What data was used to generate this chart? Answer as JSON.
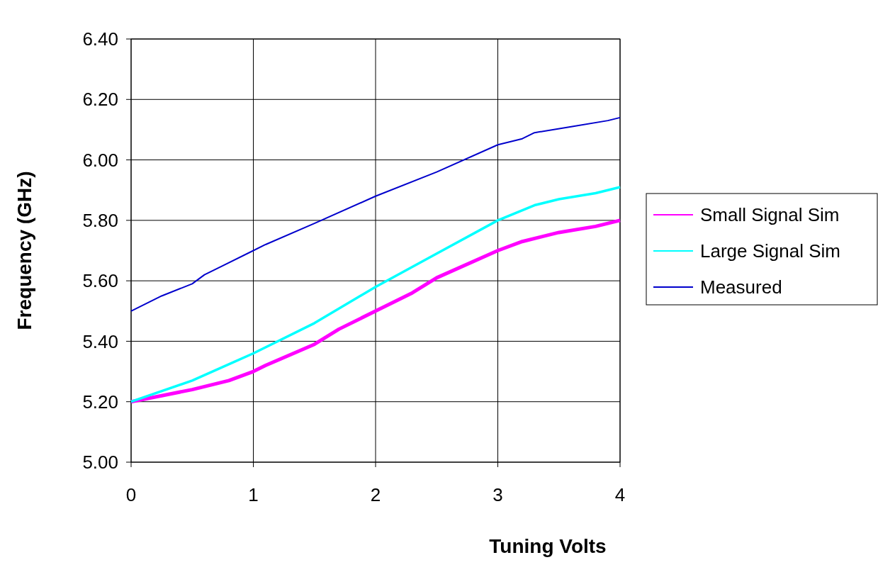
{
  "chart_data": {
    "type": "line",
    "xlabel": "Tuning Volts",
    "ylabel": "Frequency (GHz)",
    "xlim": [
      0,
      4
    ],
    "xticks": [
      0,
      1,
      2,
      3,
      4
    ],
    "ylim": [
      5,
      6.4
    ],
    "yticks": [
      {
        "value": 5,
        "label": "5.00"
      },
      {
        "value": 5.2,
        "label": "5.20"
      },
      {
        "value": 5.4,
        "label": "5.40"
      },
      {
        "value": 5.6,
        "label": "5.60"
      },
      {
        "value": 5.8,
        "label": "5.80"
      },
      {
        "value": 6,
        "label": "6.00"
      },
      {
        "value": 6.2,
        "label": "6.20"
      },
      {
        "value": 6.4,
        "label": "6.40"
      }
    ],
    "grid": true,
    "legend": "right",
    "marker": "none",
    "line_style": "solid",
    "series": [
      {
        "name": "Small Signal Sim",
        "color": "#ff00ff",
        "x": [
          0,
          0.25,
          0.5,
          0.8,
          1,
          1.1,
          1.5,
          1.7,
          2,
          2.3,
          2.5,
          3,
          3.2,
          3.5,
          3.8,
          4
        ],
        "values": [
          5.2,
          5.22,
          5.24,
          5.27,
          5.3,
          5.32,
          5.39,
          5.44,
          5.5,
          5.56,
          5.61,
          5.7,
          5.73,
          5.76,
          5.78,
          5.8
        ]
      },
      {
        "name": "Large Signal Sim",
        "color": "#00ffff",
        "x": [
          0,
          0.5,
          1,
          1.5,
          2,
          2.5,
          3,
          3.3,
          3.5,
          3.8,
          4
        ],
        "values": [
          5.2,
          5.27,
          5.36,
          5.46,
          5.58,
          5.69,
          5.8,
          5.85,
          5.87,
          5.89,
          5.91
        ]
      },
      {
        "name": "Measured",
        "color": "#0000cc",
        "x": [
          0,
          0.25,
          0.5,
          0.6,
          0.75,
          1,
          1.1,
          1.5,
          2,
          2.5,
          3,
          3.2,
          3.3,
          3.6,
          3.9,
          4
        ],
        "values": [
          5.5,
          5.55,
          5.59,
          5.62,
          5.65,
          5.7,
          5.72,
          5.79,
          5.88,
          5.96,
          6.05,
          6.07,
          6.09,
          6.11,
          6.13,
          6.14
        ]
      }
    ]
  }
}
